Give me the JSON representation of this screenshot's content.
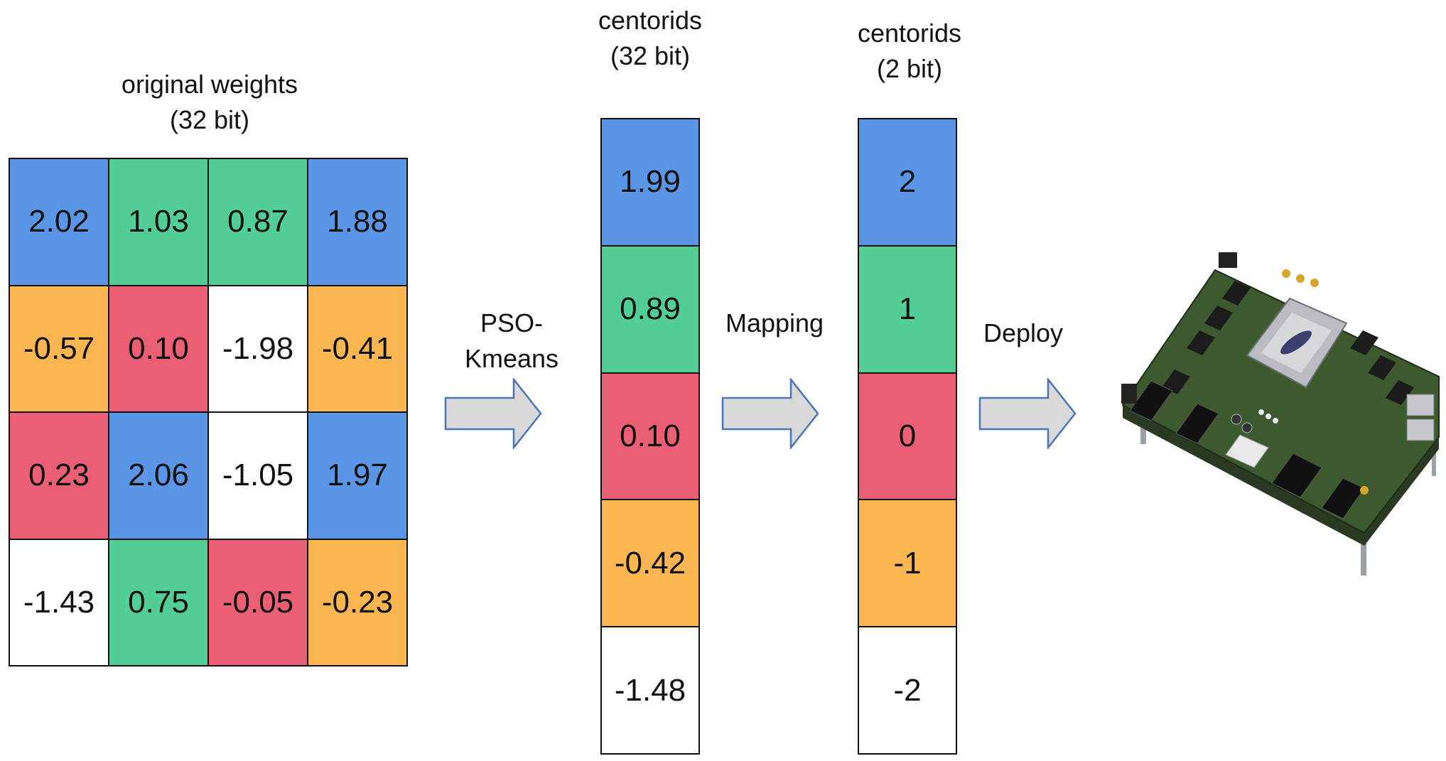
{
  "weights": {
    "title_line1": "original weights",
    "title_line2": "(32 bit)",
    "cells": [
      {
        "value": "2.02",
        "cluster": "blue"
      },
      {
        "value": "1.03",
        "cluster": "green"
      },
      {
        "value": "0.87",
        "cluster": "green"
      },
      {
        "value": "1.88",
        "cluster": "blue"
      },
      {
        "value": "-0.57",
        "cluster": "orange"
      },
      {
        "value": "0.10",
        "cluster": "red"
      },
      {
        "value": "-1.98",
        "cluster": "white"
      },
      {
        "value": "-0.41",
        "cluster": "orange"
      },
      {
        "value": "0.23",
        "cluster": "red"
      },
      {
        "value": "2.06",
        "cluster": "blue"
      },
      {
        "value": "-1.05",
        "cluster": "white"
      },
      {
        "value": "1.97",
        "cluster": "blue"
      },
      {
        "value": "-1.43",
        "cluster": "white"
      },
      {
        "value": "0.75",
        "cluster": "green"
      },
      {
        "value": "-0.05",
        "cluster": "red"
      },
      {
        "value": "-0.23",
        "cluster": "orange"
      }
    ]
  },
  "centroids32": {
    "title_line1": "centorids",
    "title_line2": "(32 bit)",
    "cells": [
      {
        "value": "1.99",
        "cluster": "blue"
      },
      {
        "value": "0.89",
        "cluster": "green"
      },
      {
        "value": "0.10",
        "cluster": "red"
      },
      {
        "value": "-0.42",
        "cluster": "orange"
      },
      {
        "value": "-1.48",
        "cluster": "white"
      }
    ]
  },
  "centroids2": {
    "title_line1": "centorids",
    "title_line2": "(2 bit)",
    "cells": [
      {
        "value": "2",
        "cluster": "blue"
      },
      {
        "value": "1",
        "cluster": "green"
      },
      {
        "value": "0",
        "cluster": "red"
      },
      {
        "value": "-1",
        "cluster": "orange"
      },
      {
        "value": "-2",
        "cluster": "white"
      }
    ]
  },
  "steps": {
    "pso_kmeans": "PSO-Kmeans",
    "mapping": "Mapping",
    "deploy": "Deploy"
  },
  "colors": {
    "blue": "#5b95e6",
    "green": "#52ce96",
    "red": "#eb5f74",
    "orange": "#fbb652",
    "white": "#ffffff",
    "arrow_fill": "#d9d9d9",
    "arrow_stroke": "#4a74b6"
  }
}
